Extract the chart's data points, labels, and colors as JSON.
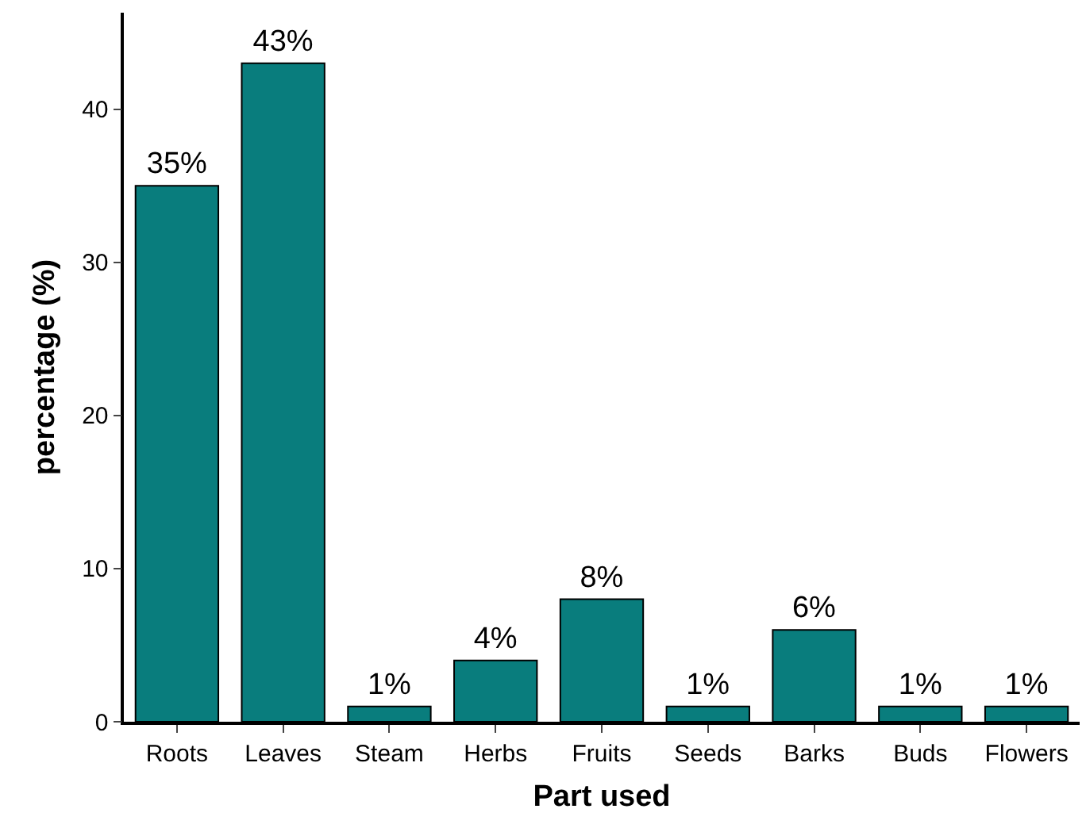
{
  "chart_data": {
    "type": "bar",
    "xlabel": "Part used",
    "ylabel": "percentage (%)",
    "categories": [
      "Roots",
      "Leaves",
      "Steam",
      "Herbs",
      "Fruits",
      "Seeds",
      "Barks",
      "Buds",
      "Flowers"
    ],
    "values": [
      35,
      43,
      1,
      4,
      8,
      1,
      6,
      1,
      1
    ],
    "value_labels": [
      "35%",
      "43%",
      "1%",
      "4%",
      "8%",
      "1%",
      "6%",
      "1%",
      "1%"
    ],
    "color": "#097d7d",
    "ylim": [
      0,
      46.3
    ],
    "yticks": [
      0,
      10,
      20,
      30,
      40
    ],
    "grid": false,
    "legend": false
  }
}
